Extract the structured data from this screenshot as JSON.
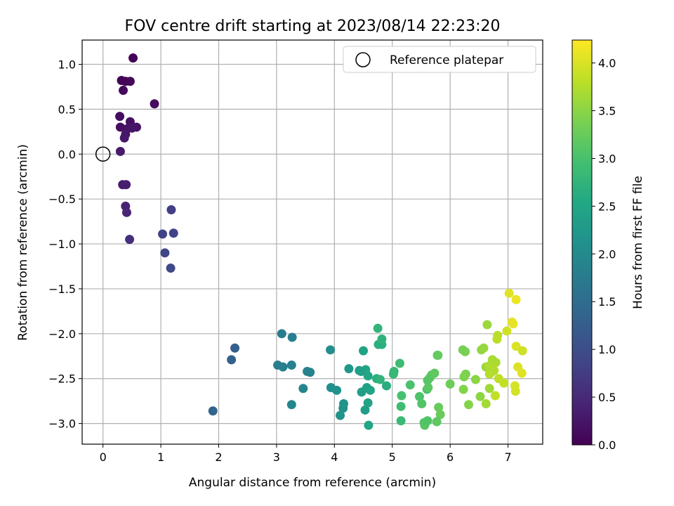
{
  "chart_data": {
    "type": "scatter",
    "title": "FOV centre drift starting at 2023/08/14 22:23:20",
    "xlabel": "Angular distance from reference (arcmin)",
    "ylabel": "Rotation from reference (arcmin)",
    "colorbar_label": "Hours from first FF file",
    "colormap": "viridis",
    "xlim": [
      -0.36,
      7.6
    ],
    "ylim": [
      -3.23,
      1.27
    ],
    "xticks": [
      0,
      1,
      2,
      3,
      4,
      5,
      6,
      7
    ],
    "xtick_labels": [
      "0",
      "1",
      "2",
      "3",
      "4",
      "5",
      "6",
      "7"
    ],
    "yticks": [
      1.0,
      0.5,
      0.0,
      -0.5,
      -1.0,
      -1.5,
      -2.0,
      -2.5,
      -3.0
    ],
    "ytick_labels": [
      "1.0",
      "0.5",
      "0.0",
      "−0.5",
      "−1.0",
      "−1.5",
      "−2.0",
      "−2.5",
      "−3.0"
    ],
    "colorbar_range": [
      0,
      4.24
    ],
    "colorbar_ticks": [
      0.0,
      0.5,
      1.0,
      1.5,
      2.0,
      2.5,
      3.0,
      3.5,
      4.0
    ],
    "colorbar_tick_labels": [
      "0.0",
      "0.5",
      "1.0",
      "1.5",
      "2.0",
      "2.5",
      "3.0",
      "3.5",
      "4.0"
    ],
    "grid": true,
    "legend": {
      "label": "Reference platepar",
      "position": "top-right"
    },
    "reference_point": {
      "x": 0,
      "y": 0
    },
    "series": [
      {
        "x": [
          0.52,
          0.32,
          0.39,
          0.47,
          0.35,
          0.89,
          0.29,
          0.3,
          0.47,
          0.41,
          0.58,
          0.5,
          0.39,
          0.37,
          0.3,
          0.34,
          0.4,
          0.39,
          0.41,
          0.46,
          1.18,
          1.03,
          1.22,
          1.07,
          1.17,
          2.28,
          2.22,
          1.9,
          3.09,
          3.27,
          3.02,
          3.11,
          3.26,
          3.53,
          3.58,
          3.46,
          3.26,
          3.93,
          3.94,
          4.04,
          4.1,
          4.15,
          4.16,
          4.25,
          4.43,
          4.47,
          4.5,
          4.54,
          4.58,
          4.46,
          4.56,
          4.62,
          4.53,
          4.58,
          4.59,
          4.75,
          4.82,
          4.76,
          4.82,
          4.73,
          4.79,
          4.9,
          5.03,
          5.02,
          5.13,
          5.16,
          5.15,
          5.15,
          5.31,
          5.47,
          5.51,
          5.55,
          5.56,
          5.6,
          5.65,
          5.68,
          5.61,
          5.62,
          5.61,
          5.73,
          5.78,
          5.79,
          5.8,
          5.83,
          5.77,
          6.0,
          6.22,
          6.26,
          6.27,
          6.24,
          6.23,
          6.32,
          6.44,
          6.52,
          6.54,
          6.58,
          6.62,
          6.64,
          6.71,
          6.68,
          6.73,
          6.79,
          6.67,
          6.76,
          6.82,
          6.81,
          6.84,
          6.93,
          6.98,
          7.02,
          7.07,
          7.09,
          7.14,
          7.14,
          7.12,
          7.13,
          7.17,
          7.25,
          7.24,
          6.62,
          6.68,
          6.78
        ],
        "y": [
          1.07,
          0.82,
          0.81,
          0.81,
          0.71,
          0.56,
          0.42,
          0.3,
          0.36,
          0.28,
          0.3,
          0.29,
          0.22,
          0.18,
          0.03,
          -0.34,
          -0.34,
          -0.58,
          -0.65,
          -0.95,
          -0.62,
          -0.89,
          -0.88,
          -1.1,
          -1.27,
          -2.16,
          -2.29,
          -2.86,
          -2.0,
          -2.04,
          -2.35,
          -2.37,
          -2.35,
          -2.42,
          -2.43,
          -2.61,
          -2.79,
          -2.18,
          -2.6,
          -2.63,
          -2.91,
          -2.83,
          -2.78,
          -2.39,
          -2.41,
          -2.65,
          -2.19,
          -2.4,
          -2.47,
          -2.42,
          -2.6,
          -2.63,
          -2.85,
          -2.77,
          -3.02,
          -1.94,
          -2.12,
          -2.12,
          -2.06,
          -2.5,
          -2.51,
          -2.58,
          -2.42,
          -2.45,
          -2.33,
          -2.69,
          -2.81,
          -2.97,
          -2.57,
          -2.7,
          -2.78,
          -2.99,
          -3.02,
          -2.62,
          -2.49,
          -2.46,
          -2.52,
          -2.6,
          -2.97,
          -2.44,
          -2.24,
          -2.24,
          -2.82,
          -2.9,
          -2.98,
          -2.56,
          -2.18,
          -2.2,
          -2.45,
          -2.48,
          -2.62,
          -2.79,
          -2.51,
          -2.7,
          -2.18,
          -2.16,
          -2.37,
          -1.9,
          -2.43,
          -2.61,
          -2.29,
          -2.32,
          -2.36,
          -2.41,
          -2.02,
          -2.06,
          -2.5,
          -2.55,
          -1.97,
          -1.55,
          -1.87,
          -1.89,
          -1.62,
          -2.14,
          -2.58,
          -2.64,
          -2.37,
          -2.19,
          -2.44,
          -2.78,
          -2.45,
          -2.69
        ],
        "c": [
          0.02,
          0.04,
          0.06,
          0.08,
          0.1,
          0.12,
          0.14,
          0.16,
          0.18,
          0.2,
          0.22,
          0.24,
          0.26,
          0.28,
          0.3,
          0.33,
          0.36,
          0.4,
          0.44,
          0.55,
          0.78,
          0.82,
          0.85,
          0.88,
          0.92,
          1.28,
          1.32,
          1.36,
          1.75,
          1.78,
          1.8,
          1.82,
          1.84,
          1.86,
          1.88,
          1.9,
          1.92,
          2.08,
          2.1,
          2.12,
          2.14,
          2.16,
          2.18,
          2.22,
          2.35,
          2.4,
          2.45,
          2.48,
          2.52,
          2.38,
          2.42,
          2.46,
          2.36,
          2.44,
          2.5,
          2.75,
          2.7,
          2.66,
          2.72,
          2.68,
          2.74,
          2.62,
          2.8,
          2.82,
          2.9,
          3.0,
          2.92,
          2.86,
          3.02,
          3.05,
          3.08,
          3.06,
          3.12,
          3.04,
          3.1,
          3.14,
          3.12,
          3.16,
          3.06,
          3.18,
          3.2,
          3.22,
          3.24,
          3.26,
          3.18,
          3.3,
          3.35,
          3.38,
          3.4,
          3.42,
          3.44,
          3.46,
          3.5,
          3.52,
          3.55,
          3.56,
          3.58,
          3.6,
          3.62,
          3.64,
          3.68,
          3.7,
          3.72,
          3.74,
          3.78,
          3.8,
          3.82,
          3.85,
          3.95,
          4.05,
          4.08,
          4.1,
          4.12,
          4.0,
          3.98,
          3.96,
          4.02,
          3.92,
          4.04,
          3.66,
          3.76,
          3.84
        ]
      }
    ]
  }
}
